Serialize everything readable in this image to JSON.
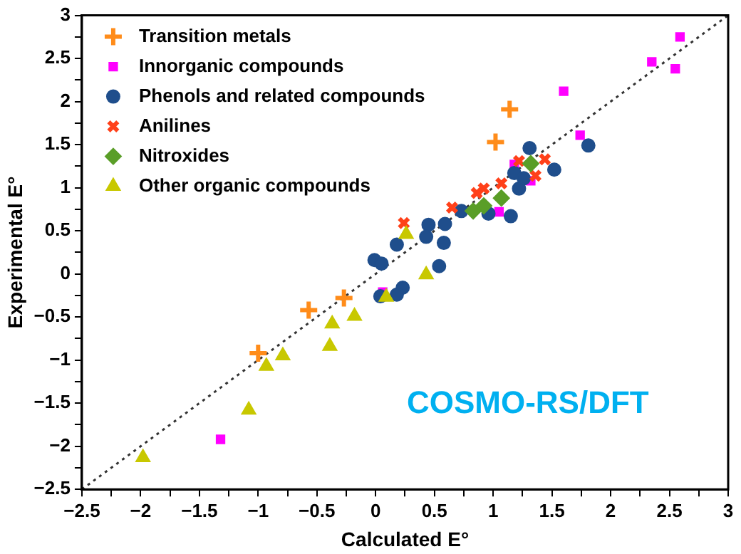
{
  "chart_data": {
    "type": "scatter",
    "xlabel": "Calculated E°",
    "ylabel": "Experimental E°",
    "legend": "top left",
    "grid": false,
    "annotations": [
      "COSMO-RS/DFT"
    ],
    "xlim": [
      -2.5,
      3
    ],
    "ylim": [
      -2.5,
      3
    ],
    "xticks": [
      {
        "value": -2.5,
        "label": "−2.5"
      },
      {
        "value": -2.25,
        "label": null
      },
      {
        "value": -2,
        "label": "−2"
      },
      {
        "value": -1.75,
        "label": null
      },
      {
        "value": -1.5,
        "label": "−1.5"
      },
      {
        "value": -1.25,
        "label": null
      },
      {
        "value": -1,
        "label": "−1"
      },
      {
        "value": -0.75,
        "label": null
      },
      {
        "value": -0.5,
        "label": "−0.5"
      },
      {
        "value": -0.25,
        "label": null
      },
      0,
      {
        "value": 0.25,
        "label": null
      },
      0.5,
      {
        "value": 0.75,
        "label": null
      },
      1,
      {
        "value": 1.25,
        "label": null
      },
      1.5,
      {
        "value": 1.75,
        "label": null
      },
      2,
      {
        "value": 2.25,
        "label": null
      },
      2.5,
      {
        "value": 2.75,
        "label": null
      },
      3
    ],
    "yticks": [
      {
        "value": -2.5,
        "label": "−2.5"
      },
      {
        "value": -2.25,
        "label": null
      },
      {
        "value": -2,
        "label": "−2"
      },
      {
        "value": -1.75,
        "label": null
      },
      {
        "value": -1.5,
        "label": "−1.5"
      },
      {
        "value": -1.25,
        "label": null
      },
      {
        "value": -1,
        "label": "−1"
      },
      {
        "value": -0.75,
        "label": null
      },
      {
        "value": -0.5,
        "label": "−0.5"
      },
      {
        "value": -0.25,
        "label": null
      },
      0,
      {
        "value": 0.25,
        "label": null
      },
      0.5,
      {
        "value": 0.75,
        "label": null
      },
      1,
      {
        "value": 1.25,
        "label": null
      },
      1.5,
      {
        "value": 1.75,
        "label": null
      },
      2,
      {
        "value": 2.25,
        "label": null
      },
      2.5,
      {
        "value": 2.75,
        "label": null
      },
      3
    ],
    "series": [
      {
        "type": "line",
        "color": "#333333",
        "line_style": "dotted",
        "marker": "none",
        "x": [
          -2.5,
          3
        ],
        "values": [
          -2.5,
          3
        ]
      },
      {
        "name": "Transition metals",
        "color": "#ff8c1a",
        "marker": "cross",
        "x": [
          1.14,
          1.02,
          -0.27,
          -0.57,
          -1.0
        ],
        "values": [
          1.91,
          1.53,
          -0.28,
          -0.42,
          -0.92
        ]
      },
      {
        "name": "Innorganic compounds",
        "color": "#ff00ff",
        "marker": "square",
        "x": [
          2.59,
          2.35,
          2.55,
          1.6,
          1.74,
          1.18,
          1.32,
          1.05,
          0.06,
          -1.32
        ],
        "values": [
          2.75,
          2.46,
          2.38,
          2.12,
          1.61,
          1.27,
          1.08,
          0.72,
          -0.21,
          -1.92
        ]
      },
      {
        "name": "Phenols and related compounds",
        "color": "#1f4e8c",
        "marker": "circle",
        "x": [
          1.31,
          1.81,
          1.52,
          1.18,
          1.26,
          1.22,
          1.15,
          0.96,
          0.73,
          0.59,
          0.45,
          0.43,
          0.58,
          0.18,
          -0.01,
          0.05,
          0.54,
          0.23,
          0.18,
          0.04
        ],
        "values": [
          1.46,
          1.49,
          1.21,
          1.17,
          1.11,
          0.99,
          0.67,
          0.7,
          0.73,
          0.58,
          0.57,
          0.43,
          0.36,
          0.34,
          0.16,
          0.12,
          0.09,
          -0.16,
          -0.24,
          -0.26
        ]
      },
      {
        "name": "Anilines",
        "color": "#ff4019",
        "marker": "x",
        "x": [
          0.24,
          0.65,
          0.86,
          0.92,
          1.07,
          1.22,
          1.44,
          1.36
        ],
        "values": [
          0.59,
          0.77,
          0.94,
          0.99,
          1.05,
          1.31,
          1.33,
          1.14
        ]
      },
      {
        "name": "Nitroxides",
        "color": "#5a9e28",
        "marker": "diamond",
        "x": [
          0.83,
          0.92,
          1.07,
          1.32
        ],
        "values": [
          0.73,
          0.79,
          0.88,
          1.28
        ]
      },
      {
        "name": "Other organic compounds",
        "color": "#c8c800",
        "marker": "triangle",
        "x": [
          0.26,
          0.43,
          0.09,
          -0.37,
          -0.18,
          -0.39,
          -0.79,
          -0.93,
          -1.08,
          -1.98
        ],
        "values": [
          0.46,
          -0.01,
          -0.27,
          -0.58,
          -0.49,
          -0.84,
          -0.95,
          -1.07,
          -1.58,
          -2.13
        ]
      }
    ]
  }
}
